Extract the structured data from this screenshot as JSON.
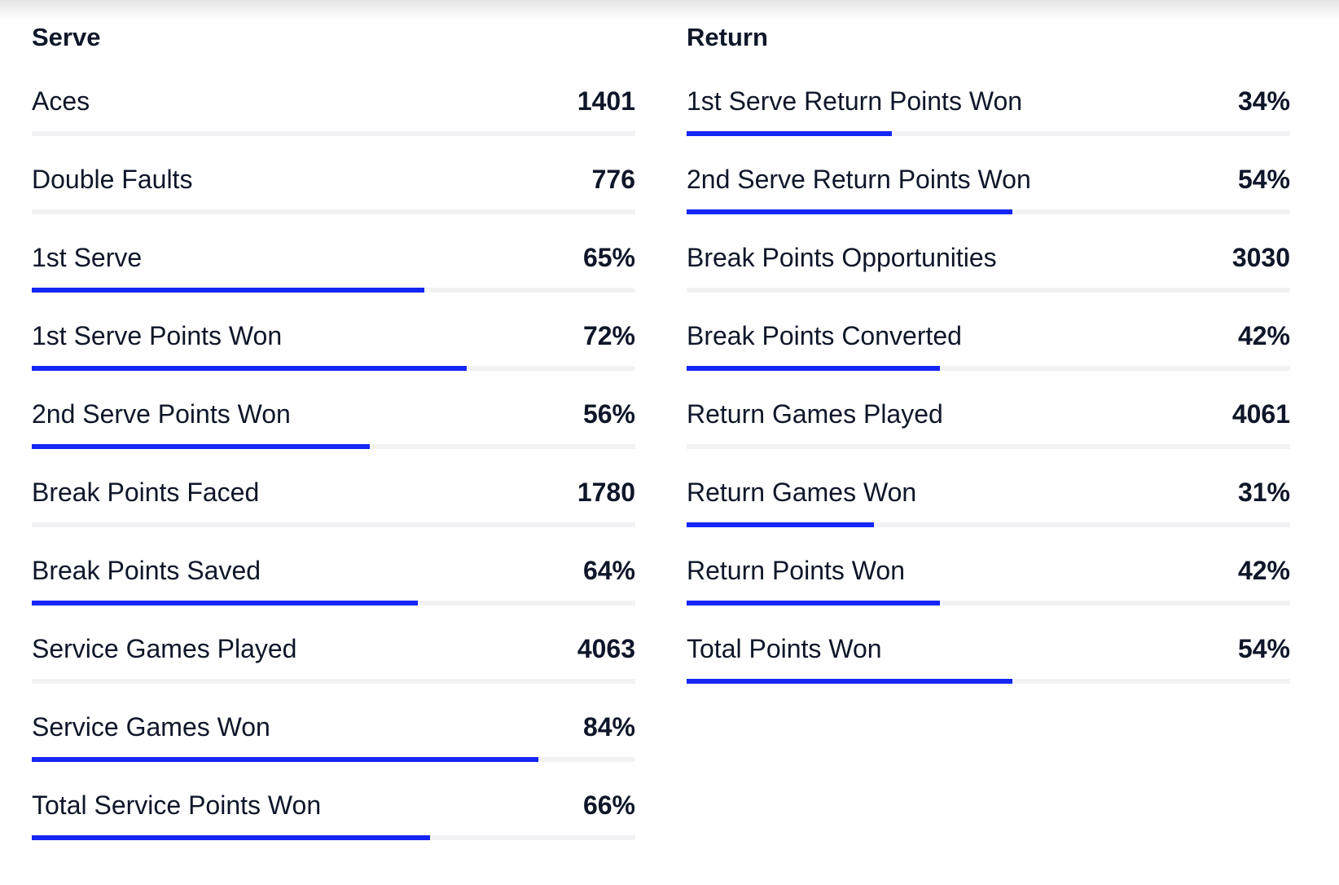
{
  "serve": {
    "title": "Serve",
    "stats": [
      {
        "label": "Aces",
        "value": "1401"
      },
      {
        "label": "Double Faults",
        "value": "776"
      },
      {
        "label": "1st Serve",
        "value": "65%",
        "bar_pct": 65
      },
      {
        "label": "1st Serve Points Won",
        "value": "72%",
        "bar_pct": 72
      },
      {
        "label": "2nd Serve Points Won",
        "value": "56%",
        "bar_pct": 56
      },
      {
        "label": "Break Points Faced",
        "value": "1780"
      },
      {
        "label": "Break Points Saved",
        "value": "64%",
        "bar_pct": 64
      },
      {
        "label": "Service Games Played",
        "value": "4063"
      },
      {
        "label": "Service Games Won",
        "value": "84%",
        "bar_pct": 84
      },
      {
        "label": "Total Service Points Won",
        "value": "66%",
        "bar_pct": 66
      }
    ]
  },
  "return": {
    "title": "Return",
    "stats": [
      {
        "label": "1st Serve Return Points Won",
        "value": "34%",
        "bar_pct": 34
      },
      {
        "label": "2nd Serve Return Points Won",
        "value": "54%",
        "bar_pct": 54
      },
      {
        "label": "Break Points Opportunities",
        "value": "3030"
      },
      {
        "label": "Break Points Converted",
        "value": "42%",
        "bar_pct": 42
      },
      {
        "label": "Return Games Played",
        "value": "4061"
      },
      {
        "label": "Return Games Won",
        "value": "31%",
        "bar_pct": 31
      },
      {
        "label": "Return Points Won",
        "value": "42%",
        "bar_pct": 42
      },
      {
        "label": "Total Points Won",
        "value": "54%",
        "bar_pct": 54
      }
    ]
  },
  "colors": {
    "bar_fill": "#1526f5",
    "bar_track": "#f2f2f4",
    "text": "#0f1629"
  }
}
